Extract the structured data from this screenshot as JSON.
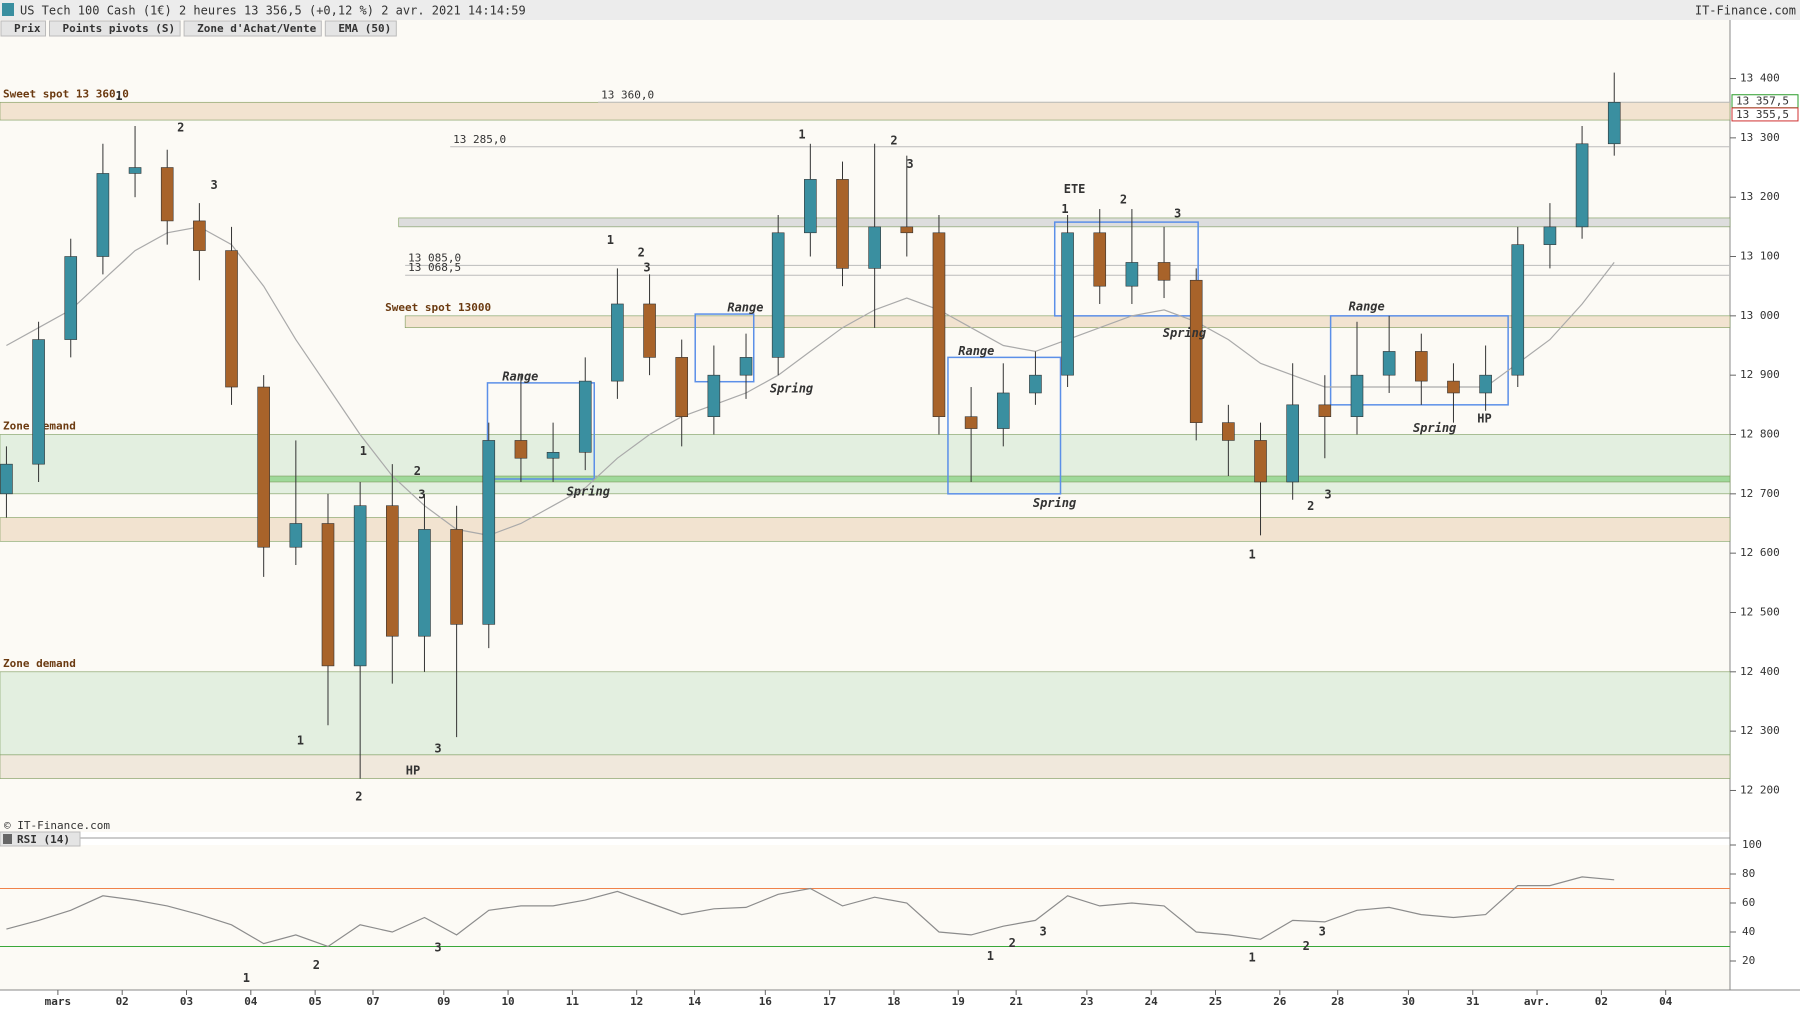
{
  "header": {
    "title": "US Tech 100 Cash (1€) 2 heures 13 356,5 (+0,12 %) 2 avr. 2021 14:14:59",
    "source": "IT-Finance.com"
  },
  "legend": [
    {
      "name": "Prix",
      "color": "#3a8fa0"
    },
    {
      "name": "Points pivots (S)",
      "color": "#bbbbbb"
    },
    {
      "name": "Zone d'Achat/Vente",
      "color": "#e0452b"
    },
    {
      "name": "EMA (50)",
      "color": "#aaaaaa"
    }
  ],
  "watermark": "© IT-Finance.com",
  "chart_data": [
    {
      "type": "candlestick",
      "up_color": "#3a8fa0",
      "down_color": "#a8632a",
      "xlim": [
        -0.9,
        26
      ],
      "ylim": [
        12130,
        13470
      ],
      "yticks": [
        {
          "value": 12200,
          "label": "12 200"
        },
        {
          "value": 12300,
          "label": "12 300"
        },
        {
          "value": 12400,
          "label": "12 400"
        },
        {
          "value": 12500,
          "label": "12 500"
        },
        {
          "value": 12600,
          "label": "12 600"
        },
        {
          "value": 12700,
          "label": "12 700"
        },
        {
          "value": 12800,
          "label": "12 800"
        },
        {
          "value": 12900,
          "label": "12 900"
        },
        {
          "value": 13000,
          "label": "13 000"
        },
        {
          "value": 13100,
          "label": "13 100"
        },
        {
          "value": 13200,
          "label": "13 200"
        },
        {
          "value": 13300,
          "label": "13 300"
        },
        {
          "value": 13400,
          "label": "13 400"
        }
      ],
      "x": [
        -0.8,
        -0.3,
        0.2,
        0.7,
        1.2,
        1.7,
        2.2,
        2.7,
        3.2,
        3.7,
        4.2,
        4.7,
        5.2,
        5.7,
        6.2,
        6.7,
        7.2,
        7.7,
        8.2,
        8.7,
        9.2,
        9.7,
        10.2,
        10.7,
        11.2,
        11.7,
        12.2,
        12.7,
        13.2,
        13.7,
        14.2,
        14.7,
        15.2,
        15.7,
        16.2,
        16.7,
        17.2,
        17.7,
        18.2,
        18.7,
        19.2,
        19.7,
        20.2,
        20.7,
        21.2,
        21.7,
        22.2,
        22.7,
        23.2,
        23.7,
        24.2
      ],
      "open": [
        12700,
        12750,
        12960,
        13100,
        13240,
        13250,
        13160,
        13110,
        12880,
        12610,
        12650,
        12410,
        12680,
        12460,
        12640,
        12480,
        12790,
        12760,
        12770,
        12890,
        13020,
        12930,
        12830,
        12900,
        12930,
        13140,
        13230,
        13080,
        13150,
        13140,
        12830,
        12810,
        12870,
        12900,
        13140,
        13050,
        13090,
        13060,
        12820,
        12790,
        12720,
        12850,
        12830,
        12900,
        12940,
        12890,
        12870,
        12900,
        13120,
        13150,
        13290
      ],
      "high": [
        12780,
        12990,
        13130,
        13290,
        13320,
        13280,
        13190,
        13150,
        12900,
        12790,
        12700,
        12720,
        12750,
        12700,
        12680,
        12820,
        12900,
        12820,
        12930,
        13080,
        13070,
        12960,
        12950,
        12970,
        13170,
        13290,
        13260,
        13290,
        13270,
        13170,
        12880,
        12920,
        12940,
        13170,
        13180,
        13180,
        13150,
        13080,
        12850,
        12820,
        12920,
        12900,
        12990,
        13000,
        12970,
        12920,
        12950,
        13150,
        13190,
        13320,
        13410
      ],
      "low": [
        12660,
        12720,
        12930,
        13070,
        13200,
        13120,
        13060,
        12850,
        12560,
        12580,
        12310,
        12220,
        12380,
        12400,
        12290,
        12440,
        12720,
        12720,
        12740,
        12860,
        12900,
        12780,
        12800,
        12860,
        12900,
        13100,
        13050,
        12980,
        13100,
        12800,
        12720,
        12780,
        12850,
        12880,
        13020,
        13020,
        13030,
        12790,
        12730,
        12630,
        12690,
        12760,
        12800,
        12870,
        12850,
        12820,
        12840,
        12880,
        13080,
        13130,
        13270
      ],
      "close": [
        12750,
        12960,
        13100,
        13240,
        13250,
        13160,
        13110,
        12880,
        12610,
        12650,
        12410,
        12680,
        12460,
        12640,
        12480,
        12790,
        12760,
        12770,
        12890,
        13020,
        12930,
        12830,
        12900,
        12930,
        13140,
        13230,
        13080,
        13150,
        13140,
        12830,
        12810,
        12870,
        12900,
        13140,
        13050,
        13090,
        13060,
        12820,
        12790,
        12720,
        12850,
        12830,
        12900,
        12940,
        12890,
        12870,
        12900,
        13120,
        13150,
        13290,
        13360
      ],
      "ema": {
        "name": "EMA (50)",
        "color": "#aaaaaa",
        "values": [
          12950,
          12980,
          13010,
          13060,
          13110,
          13140,
          13150,
          13120,
          13050,
          12960,
          12880,
          12800,
          12730,
          12680,
          12640,
          12630,
          12650,
          12680,
          12710,
          12760,
          12800,
          12830,
          12850,
          12870,
          12900,
          12940,
          12980,
          13010,
          13030,
          13010,
          12980,
          12950,
          12940,
          12960,
          12980,
          13000,
          13010,
          12990,
          12960,
          12920,
          12900,
          12880,
          12880,
          12880,
          12880,
          12880,
          12880,
          12920,
          12960,
          13020,
          13090
        ]
      },
      "zones": [
        {
          "from": 13330,
          "to": 13360,
          "color": "#f2e3d0",
          "label": "Sweet spot 13 360,0"
        },
        {
          "from": 13150,
          "to": 13165,
          "color": "#dddddd",
          "x": 5.3
        },
        {
          "from": 12980,
          "to": 13000,
          "color": "#f2e3d0",
          "x": 5.4,
          "label": "Sweet spot 13000"
        },
        {
          "from": 12700,
          "to": 12800,
          "color": "#e3efe0",
          "label": "Zone demand"
        },
        {
          "from": 12720,
          "to": 12730,
          "color": "#9fd99a",
          "x": 3.2
        },
        {
          "from": 12620,
          "to": 12660,
          "color": "#f2e3d0"
        },
        {
          "from": 12260,
          "to": 12400,
          "color": "#e3efe0",
          "label": "Zone demand"
        },
        {
          "from": 12220,
          "to": 12260,
          "color": "#f0e8dc"
        }
      ],
      "levels": [
        {
          "value": 13360,
          "label": "13 360,0",
          "x": 8.4
        },
        {
          "value": 13285,
          "label": "13 285,0",
          "x": 6.1
        },
        {
          "value": 13085,
          "label": "13 085,0",
          "x": 5.4
        },
        {
          "value": 13068.5,
          "label": "13 068,5",
          "x": 5.4
        }
      ],
      "boxes": [
        {
          "x": [
            6.68,
            8.34
          ],
          "y": [
            12725,
            12887
          ]
        },
        {
          "x": [
            9.91,
            10.82
          ],
          "y": [
            12889,
            13003
          ]
        },
        {
          "x": [
            13.84,
            15.59
          ],
          "y": [
            12700,
            12930
          ]
        },
        {
          "x": [
            15.5,
            17.73
          ],
          "y": [
            13000,
            13158
          ]
        },
        {
          "x": [
            19.79,
            22.55
          ],
          "y": [
            12850,
            13000
          ]
        }
      ],
      "annotations": [
        {
          "text": "1",
          "x": 0.95,
          "y": 13370,
          "color": "#f0824a"
        },
        {
          "text": "2",
          "x": 1.91,
          "y": 13317,
          "color": "#f0824a"
        },
        {
          "text": "3",
          "x": 2.43,
          "y": 13220,
          "color": "#f0824a"
        },
        {
          "text": "1",
          "x": 4.75,
          "y": 12771,
          "color": "#f0824a"
        },
        {
          "text": "2",
          "x": 5.59,
          "y": 12738,
          "color": "#f0824a"
        },
        {
          "text": "3",
          "x": 5.66,
          "y": 12698,
          "color": "#f0824a"
        },
        {
          "text": "1",
          "x": 8.59,
          "y": 13127,
          "color": "#f0824a"
        },
        {
          "text": "2",
          "x": 9.07,
          "y": 13106,
          "color": "#f0824a"
        },
        {
          "text": "3",
          "x": 9.16,
          "y": 13081,
          "color": "#f0824a"
        },
        {
          "text": "1",
          "x": 11.57,
          "y": 13305,
          "color": "#f0824a"
        },
        {
          "text": "2",
          "x": 13.0,
          "y": 13295,
          "color": "#f0824a"
        },
        {
          "text": "3",
          "x": 13.25,
          "y": 13255,
          "color": "#f0824a"
        },
        {
          "text": "1",
          "x": 15.66,
          "y": 13179,
          "color": "#f0824a"
        },
        {
          "text": "2",
          "x": 16.57,
          "y": 13195,
          "color": "#f0824a"
        },
        {
          "text": "3",
          "x": 17.41,
          "y": 13172,
          "color": "#f0824a"
        },
        {
          "text": "1",
          "x": 3.77,
          "y": 12283,
          "color": "#3aa83a"
        },
        {
          "text": "2",
          "x": 4.68,
          "y": 12189,
          "color": "#3aa83a"
        },
        {
          "text": "3",
          "x": 5.91,
          "y": 12270,
          "color": "#3aa83a"
        },
        {
          "text": "1",
          "x": 18.57,
          "y": 12597,
          "color": "#3aa83a"
        },
        {
          "text": "2",
          "x": 19.48,
          "y": 12679,
          "color": "#3aa83a"
        },
        {
          "text": "3",
          "x": 19.75,
          "y": 12698,
          "color": "#3aa83a"
        },
        {
          "text": "Range",
          "x": 6.91,
          "y": 12897,
          "color": "#4a86e8"
        },
        {
          "text": "Range",
          "x": 10.41,
          "y": 13013,
          "color": "#4a86e8"
        },
        {
          "text": "Range",
          "x": 14.0,
          "y": 12940,
          "color": "#4a86e8"
        },
        {
          "text": "Range",
          "x": 20.07,
          "y": 13015,
          "color": "#4a86e8"
        },
        {
          "text": "Spring",
          "x": 7.91,
          "y": 12703,
          "color": "#4a86e8"
        },
        {
          "text": "Spring",
          "x": 11.07,
          "y": 12877,
          "color": "#4a86e8"
        },
        {
          "text": "Spring",
          "x": 15.16,
          "y": 12684,
          "color": "#4a86e8"
        },
        {
          "text": "Spring",
          "x": 17.18,
          "y": 12970,
          "color": "#4a86e8"
        },
        {
          "text": "Spring",
          "x": 21.07,
          "y": 12810,
          "color": "#4a86e8"
        },
        {
          "text": "ETE",
          "x": 15.64,
          "y": 13213,
          "color": "#4a86e8"
        },
        {
          "text": "HP",
          "x": 5.41,
          "y": 12233,
          "color": "#4a86e8"
        },
        {
          "text": "HP",
          "x": 22.07,
          "y": 12826,
          "color": "#4a86e8"
        }
      ],
      "price_tags": [
        {
          "value": 13357.5,
          "label": "13 357,5",
          "color": "#2a9d2a"
        },
        {
          "value": 13355.5,
          "label": "13 355,5",
          "color": "#d03030"
        }
      ]
    },
    {
      "type": "line",
      "title": "RSI (14)",
      "color": "#8c8c8c",
      "xlim": [
        -0.9,
        26
      ],
      "ylim": [
        0,
        100
      ],
      "yticks": [
        20,
        40,
        60,
        80,
        100
      ],
      "levels": [
        {
          "value": 30,
          "color": "#3aa83a"
        },
        {
          "value": 70,
          "color": "#f0824a"
        }
      ],
      "values": [
        42,
        48,
        55,
        65,
        62,
        58,
        52,
        45,
        32,
        38,
        30,
        45,
        40,
        50,
        38,
        55,
        58,
        58,
        62,
        68,
        60,
        52,
        56,
        57,
        66,
        70,
        58,
        64,
        60,
        40,
        38,
        44,
        48,
        65,
        58,
        60,
        58,
        40,
        38,
        35,
        48,
        47,
        55,
        57,
        52,
        50,
        52,
        72,
        72,
        78,
        76
      ],
      "xticks": [
        {
          "value": 0,
          "label": "mars"
        },
        {
          "value": 1,
          "label": "02"
        },
        {
          "value": 2,
          "label": "03"
        },
        {
          "value": 3,
          "label": "04"
        },
        {
          "value": 4,
          "label": "05"
        },
        {
          "value": 4.9,
          "label": "07"
        },
        {
          "value": 6,
          "label": "09"
        },
        {
          "value": 7,
          "label": "10"
        },
        {
          "value": 8,
          "label": "11"
        },
        {
          "value": 9,
          "label": "12"
        },
        {
          "value": 9.9,
          "label": "14"
        },
        {
          "value": 11,
          "label": "16"
        },
        {
          "value": 12,
          "label": "17"
        },
        {
          "value": 13,
          "label": "18"
        },
        {
          "value": 14,
          "label": "19"
        },
        {
          "value": 14.9,
          "label": "21"
        },
        {
          "value": 16,
          "label": "23"
        },
        {
          "value": 17,
          "label": "24"
        },
        {
          "value": 18,
          "label": "25"
        },
        {
          "value": 19,
          "label": "26"
        },
        {
          "value": 19.9,
          "label": "28"
        },
        {
          "value": 21,
          "label": "30"
        },
        {
          "value": 22,
          "label": "31"
        },
        {
          "value": 23,
          "label": "avr."
        },
        {
          "value": 24,
          "label": "02"
        },
        {
          "value": 25,
          "label": "04"
        }
      ],
      "annotations": [
        {
          "text": "1",
          "x": 2.93,
          "y": 8,
          "color": "#3aa83a"
        },
        {
          "text": "2",
          "x": 4.02,
          "y": 17,
          "color": "#3aa83a"
        },
        {
          "text": "3",
          "x": 5.91,
          "y": 29,
          "color": "#3aa83a"
        },
        {
          "text": "1",
          "x": 14.5,
          "y": 23,
          "color": "#3aa83a"
        },
        {
          "text": "2",
          "x": 14.84,
          "y": 32,
          "color": "#3aa83a"
        },
        {
          "text": "3",
          "x": 15.32,
          "y": 40,
          "color": "#3aa83a"
        },
        {
          "text": "1",
          "x": 18.57,
          "y": 22,
          "color": "#3aa83a"
        },
        {
          "text": "2",
          "x": 19.41,
          "y": 30,
          "color": "#3aa83a"
        },
        {
          "text": "3",
          "x": 19.66,
          "y": 40,
          "color": "#3aa83a"
        }
      ]
    }
  ]
}
